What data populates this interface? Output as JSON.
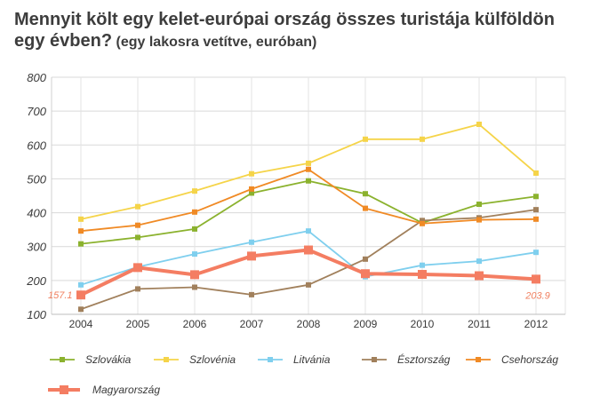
{
  "chart_data": {
    "type": "line",
    "title": "Mennyit költ egy kelet-európai ország összes turistája külföldön egy évben?",
    "subtitle": "(egy lakosra vetítve, euróban)",
    "x": [
      "2004",
      "2005",
      "2006",
      "2007",
      "2008",
      "2009",
      "2010",
      "2011",
      "2012"
    ],
    "ylim": [
      100,
      800
    ],
    "yticks": [
      "100",
      "200",
      "300",
      "400",
      "500",
      "600",
      "700",
      "800"
    ],
    "grid": true,
    "legend_position": "bottom",
    "series": [
      {
        "name": "Szlovákia",
        "color": "#8bb22e",
        "values": [
          308,
          327,
          352,
          458,
          494,
          456,
          370,
          425,
          448
        ]
      },
      {
        "name": "Szlovénia",
        "color": "#f5d449",
        "values": [
          381,
          418,
          464,
          515,
          546,
          617,
          617,
          661,
          517
        ]
      },
      {
        "name": "Litvánia",
        "color": "#7fcfee",
        "values": [
          187,
          240,
          278,
          313,
          346,
          211,
          245,
          257,
          283
        ]
      },
      {
        "name": "Észtország",
        "color": "#a1805c",
        "values": [
          115,
          175,
          180,
          158,
          187,
          263,
          377,
          385,
          409
        ]
      },
      {
        "name": "Csehország",
        "color": "#f08a25",
        "values": [
          346,
          363,
          402,
          470,
          528,
          413,
          368,
          379,
          381
        ]
      },
      {
        "name": "Magyarország",
        "color": "#f47d62",
        "values": [
          157.1,
          238,
          217,
          272,
          290,
          220,
          218,
          214,
          203.9
        ],
        "highlight": true
      }
    ],
    "annotations": {
      "start_label": "157.1",
      "end_label": "203.9"
    }
  }
}
